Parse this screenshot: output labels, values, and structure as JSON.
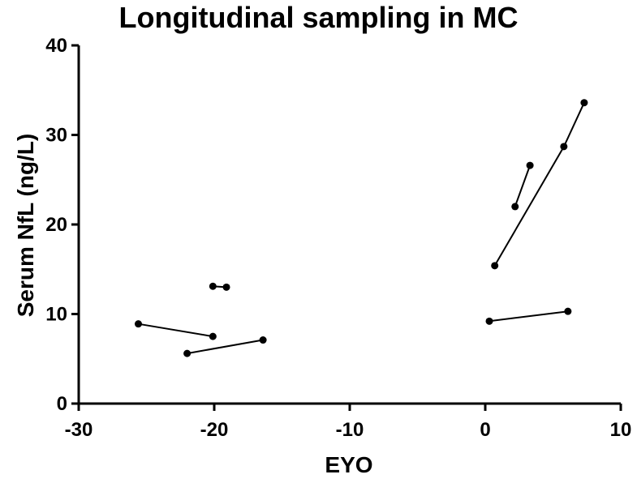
{
  "chart_data": {
    "type": "line",
    "title": "Longitudinal sampling in MC",
    "xlabel": "EYO",
    "ylabel": "Serum NfL (ng/L)",
    "xlim": [
      -30,
      10
    ],
    "ylim": [
      0,
      40
    ],
    "xticks": [
      -30,
      -20,
      -10,
      0,
      10
    ],
    "yticks": [
      0,
      10,
      20,
      30,
      40
    ],
    "xtick_labels": [
      "-30",
      "-20",
      "-10",
      "0",
      "10"
    ],
    "ytick_labels": [
      "0",
      "10",
      "20",
      "30",
      "40"
    ],
    "grid": false,
    "legend": "none",
    "series": [
      {
        "x": [
          -25.6,
          -20.1
        ],
        "y": [
          8.9,
          7.5
        ]
      },
      {
        "x": [
          -20.1,
          -19.1
        ],
        "y": [
          13.1,
          13.0
        ]
      },
      {
        "x": [
          -22.0,
          -16.4
        ],
        "y": [
          5.6,
          7.1
        ]
      },
      {
        "x": [
          0.7,
          5.8,
          7.3
        ],
        "y": [
          15.4,
          28.7,
          33.6
        ]
      },
      {
        "x": [
          2.2,
          3.3
        ],
        "y": [
          22.0,
          26.6
        ]
      },
      {
        "x": [
          0.3,
          6.1
        ],
        "y": [
          9.2,
          10.3
        ]
      }
    ]
  }
}
